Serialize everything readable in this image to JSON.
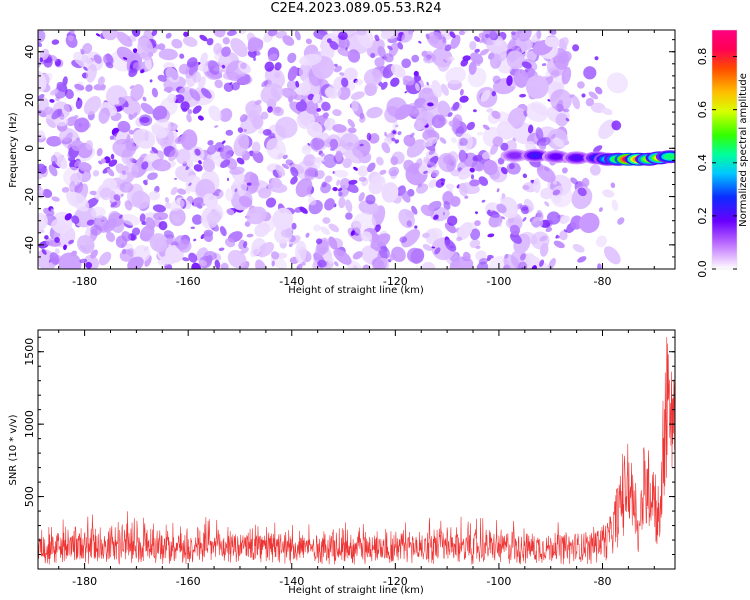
{
  "title": "C2E4.2023.089.05.53.R24",
  "chart_data": [
    {
      "type": "heatmap",
      "xlabel": "Height of straight line (km)",
      "ylabel": "Frequency (Hz)",
      "xlim": [
        -189,
        -66
      ],
      "ylim": [
        -50,
        49
      ],
      "xticks": [
        -180,
        -160,
        -140,
        -120,
        -100,
        -80
      ],
      "yticks": [
        -40,
        -20,
        0,
        20,
        40
      ],
      "colorbar": {
        "label": "Normalized spectral amplitude",
        "range": [
          0,
          0.9
        ],
        "ticks": [
          0.0,
          0.2,
          0.4,
          0.6,
          0.8
        ],
        "colormap": "gist_rainbow_r"
      },
      "signal_track": [
        {
          "x": -97,
          "y": -3,
          "amp": 0.15
        },
        {
          "x": -93,
          "y": -3,
          "amp": 0.22
        },
        {
          "x": -89,
          "y": -3.5,
          "amp": 0.18
        },
        {
          "x": -85,
          "y": -4,
          "amp": 0.2
        },
        {
          "x": -81,
          "y": -4,
          "amp": 0.25
        },
        {
          "x": -79,
          "y": -4.5,
          "amp": 0.35
        },
        {
          "x": -77,
          "y": -4.5,
          "amp": 0.5
        },
        {
          "x": -75,
          "y": -4.5,
          "amp": 0.85
        },
        {
          "x": -73,
          "y": -4.5,
          "amp": 0.7
        },
        {
          "x": -71,
          "y": -4.5,
          "amp": 0.55
        },
        {
          "x": -69,
          "y": -4,
          "amp": 0.6
        },
        {
          "x": -67,
          "y": -3.5,
          "amp": 0.45
        }
      ]
    },
    {
      "type": "line",
      "xlabel": "Height of straight line (km)",
      "ylabel": "SNR (10 * v/v)",
      "xlim": [
        -189,
        -66
      ],
      "ylim": [
        0,
        1650
      ],
      "xticks": [
        -180,
        -160,
        -140,
        -120,
        -100,
        -80
      ],
      "yticks": [
        500,
        1000,
        1500
      ],
      "series": [
        {
          "color": "#ee3333",
          "envelope": [
            {
              "x": -189,
              "low": 30,
              "mean": 150,
              "high": 330
            },
            {
              "x": -170,
              "low": 30,
              "mean": 150,
              "high": 450
            },
            {
              "x": -150,
              "low": 30,
              "mean": 150,
              "high": 330
            },
            {
              "x": -130,
              "low": 30,
              "mean": 150,
              "high": 330
            },
            {
              "x": -110,
              "low": 30,
              "mean": 150,
              "high": 380
            },
            {
              "x": -90,
              "low": 30,
              "mean": 150,
              "high": 330
            },
            {
              "x": -82,
              "low": 30,
              "mean": 160,
              "high": 330
            },
            {
              "x": -79,
              "low": 60,
              "mean": 220,
              "high": 380
            },
            {
              "x": -77,
              "low": 150,
              "mean": 420,
              "high": 650
            },
            {
              "x": -75,
              "low": 250,
              "mean": 580,
              "high": 1100
            },
            {
              "x": -74,
              "low": 180,
              "mean": 550,
              "high": 850
            },
            {
              "x": -73,
              "low": 80,
              "mean": 300,
              "high": 500
            },
            {
              "x": -72,
              "low": 200,
              "mean": 600,
              "high": 850
            },
            {
              "x": -71,
              "low": 250,
              "mean": 650,
              "high": 950
            },
            {
              "x": -70,
              "low": 200,
              "mean": 550,
              "high": 850
            },
            {
              "x": -69,
              "low": 120,
              "mean": 350,
              "high": 500
            },
            {
              "x": -68,
              "low": 500,
              "mean": 1100,
              "high": 1350
            },
            {
              "x": -67,
              "low": 700,
              "mean": 1350,
              "high": 1650
            },
            {
              "x": -66,
              "low": 600,
              "mean": 1250,
              "high": 1550
            }
          ]
        }
      ]
    }
  ]
}
